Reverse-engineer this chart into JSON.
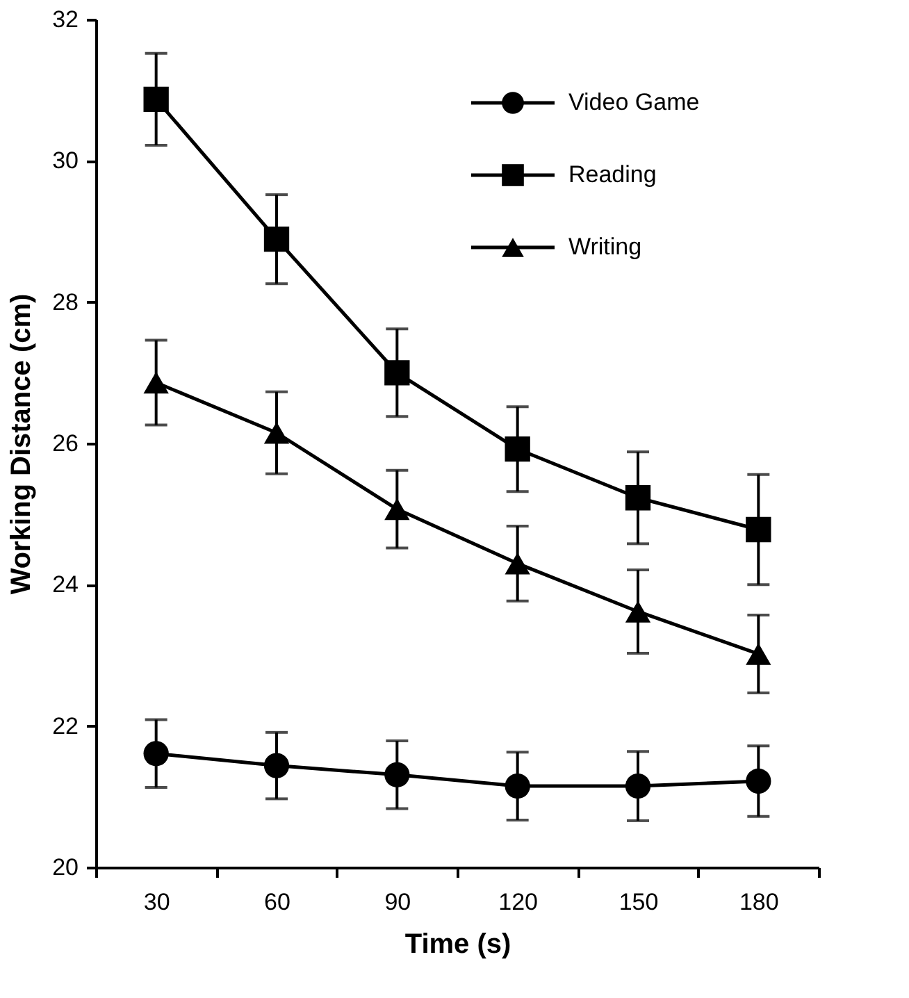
{
  "chart_data": {
    "type": "line",
    "xlabel": "Time (s)",
    "ylabel": "Working Distance (cm)",
    "categories": [
      "30",
      "60",
      "90",
      "120",
      "150",
      "180"
    ],
    "series": [
      {
        "name": "Video Game",
        "color": "#000000",
        "marker": "circle",
        "values": [
          21.61,
          21.44,
          21.31,
          21.15,
          21.15,
          21.22
        ],
        "errors": [
          0.48,
          0.47,
          0.48,
          0.48,
          0.49,
          0.5
        ]
      },
      {
        "name": "Reading",
        "color": "#000000",
        "marker": "square",
        "values": [
          30.87,
          28.89,
          27.0,
          25.92,
          25.23,
          24.78
        ],
        "errors": [
          0.65,
          0.63,
          0.62,
          0.6,
          0.65,
          0.78
        ]
      },
      {
        "name": "Writing",
        "color": "#000000",
        "marker": "triangle",
        "values": [
          26.86,
          26.15,
          25.07,
          24.3,
          23.62,
          23.02
        ],
        "errors": [
          0.6,
          0.58,
          0.55,
          0.53,
          0.59,
          0.55
        ]
      }
    ],
    "ylim": [
      20,
      32
    ],
    "yticks": [
      20,
      22,
      24,
      26,
      28,
      30,
      32
    ],
    "grid": false,
    "legend": "top right",
    "line_style": "solid"
  }
}
